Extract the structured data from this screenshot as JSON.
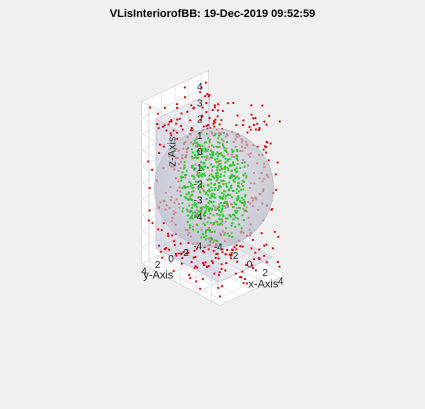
{
  "chart_data": {
    "type": "scatter3d",
    "title": "VLisInteriorofBB: 19-Dec-2019 09:52:59",
    "xlabel": "x-Axis",
    "ylabel": "y-Axis",
    "zlabel": "z-Axis",
    "xlim": [
      -5,
      5
    ],
    "ylim": [
      -5,
      5
    ],
    "zlim": [
      -5,
      5
    ],
    "xticks": [
      -4,
      -2,
      0,
      2,
      4
    ],
    "yticks": [
      -4,
      -2,
      0,
      2,
      4
    ],
    "zticks": [
      -4,
      -3,
      -2,
      -1,
      0,
      1,
      2,
      3,
      4
    ],
    "grid": true,
    "sphere": {
      "center": [
        0,
        0,
        0
      ],
      "radius": 3.5,
      "color": "#b9b9c8"
    },
    "bounding_box": {
      "min": [
        -4,
        -4,
        -4
      ],
      "max": [
        4,
        4,
        4
      ],
      "color": "#c8c8dc"
    },
    "series": [
      {
        "color": "#d40000",
        "count": 520,
        "region": "outside sphere, inside cube [-5,5]"
      },
      {
        "color": "#22cc22",
        "count": 480,
        "region": "inside sphere"
      }
    ],
    "background": "#f0f0f0"
  }
}
